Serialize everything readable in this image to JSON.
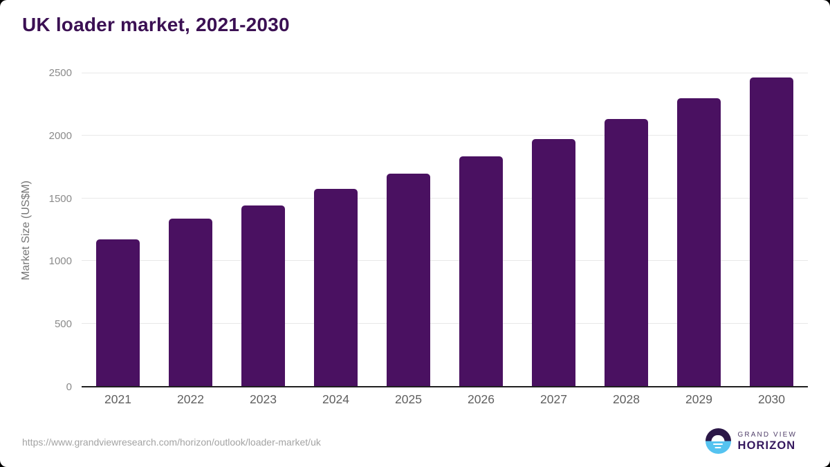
{
  "source_url": "https://www.grandviewresearch.com/horizon/outlook/loader-market/uk",
  "branding": {
    "logo_top": "GRAND VIEW",
    "logo_bottom": "HORIZON",
    "icon": "horizon-sun-icon"
  },
  "colors": {
    "bar": "#4a1161",
    "title_text": "#3b1053",
    "grid_line": "#e8e8e8",
    "axis_line": "#1f1f1f",
    "y_tick_text": "#8a8a8a",
    "x_tick_text": "#5f5f5f",
    "axis_title_text": "#757575",
    "source_text": "#a3a3a3",
    "logo_dark": "#2b1747",
    "logo_blue": "#55c3f0",
    "background": "#ffffff"
  },
  "chart_data": {
    "type": "bar",
    "title": "UK loader market, 2021-2030",
    "categories": [
      "2021",
      "2022",
      "2023",
      "2024",
      "2025",
      "2026",
      "2027",
      "2028",
      "2029",
      "2030"
    ],
    "values": [
      1170,
      1340,
      1445,
      1575,
      1700,
      1835,
      1975,
      2135,
      2300,
      2465
    ],
    "xlabel": "",
    "ylabel": "Market Size (US$M)",
    "ylim": [
      0,
      2500
    ],
    "yticks": [
      0,
      500,
      1000,
      1500,
      2000,
      2500
    ],
    "grid": "horizontal",
    "legend": "none",
    "bar_style": "rounded-top"
  }
}
